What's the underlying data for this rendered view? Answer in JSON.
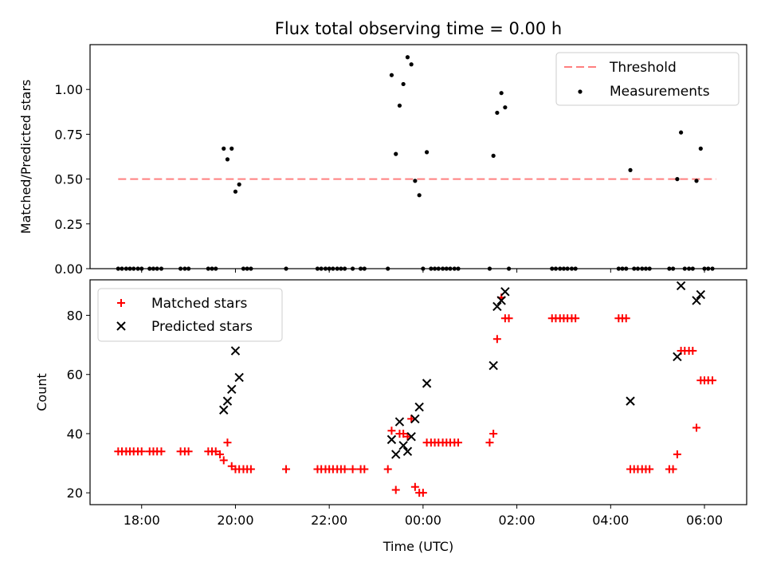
{
  "figure": {
    "title": "Flux total observing time = 0.00 h"
  },
  "colors": {
    "threshold": "#ff7f7f",
    "measurement": "#000000",
    "matched": "#ff0000",
    "predicted": "#000000"
  },
  "chart_data": [
    {
      "type": "scatter",
      "ylabel": "Matched/Predicted stars",
      "xlabel": "",
      "x_unit": "hours (UTC) from 00:00",
      "xlim": [
        -7.1,
        6.9
      ],
      "ylim": [
        0,
        1.25
      ],
      "yticks": [
        0.0,
        0.25,
        0.5,
        0.75,
        1.0
      ],
      "ytick_labels": [
        "0.00",
        "0.25",
        "0.50",
        "0.75",
        "1.00"
      ],
      "legend": {
        "position": "upper-right",
        "entries": [
          "Threshold",
          "Measurements"
        ]
      },
      "threshold": {
        "name": "Threshold",
        "y": 0.5,
        "x_range": [
          -6.5,
          6.25
        ],
        "style": "dashed"
      },
      "series": [
        {
          "name": "Measurements",
          "marker": "dot",
          "points": [
            [
              -6.5,
              0
            ],
            [
              -6.42,
              0
            ],
            [
              -6.33,
              0
            ],
            [
              -6.25,
              0
            ],
            [
              -6.17,
              0
            ],
            [
              -6.08,
              0
            ],
            [
              -6.0,
              0
            ],
            [
              -5.83,
              0
            ],
            [
              -5.75,
              0
            ],
            [
              -5.67,
              0
            ],
            [
              -5.58,
              0
            ],
            [
              -5.17,
              0
            ],
            [
              -5.08,
              0
            ],
            [
              -5.0,
              0
            ],
            [
              -4.58,
              0
            ],
            [
              -4.5,
              0
            ],
            [
              -4.42,
              0
            ],
            [
              -4.25,
              0.67
            ],
            [
              -4.17,
              0.61
            ],
            [
              -4.08,
              0.67
            ],
            [
              -4.0,
              0.43
            ],
            [
              -3.92,
              0.47
            ],
            [
              -3.83,
              0
            ],
            [
              -3.75,
              0
            ],
            [
              -3.67,
              0
            ],
            [
              -2.92,
              0
            ],
            [
              -2.25,
              0
            ],
            [
              -2.17,
              0
            ],
            [
              -2.08,
              0
            ],
            [
              -2.0,
              0
            ],
            [
              -1.92,
              0
            ],
            [
              -1.83,
              0
            ],
            [
              -1.75,
              0
            ],
            [
              -1.67,
              0
            ],
            [
              -1.5,
              0
            ],
            [
              -1.33,
              0
            ],
            [
              -1.25,
              0
            ],
            [
              -0.75,
              0
            ],
            [
              -0.67,
              1.08
            ],
            [
              -0.58,
              0.64
            ],
            [
              -0.5,
              0.91
            ],
            [
              -0.42,
              1.03
            ],
            [
              -0.33,
              1.18
            ],
            [
              -0.25,
              1.14
            ],
            [
              -0.17,
              0.49
            ],
            [
              -0.08,
              0.41
            ],
            [
              0.0,
              0
            ],
            [
              0.08,
              0.65
            ],
            [
              0.17,
              0
            ],
            [
              0.25,
              0
            ],
            [
              0.33,
              0
            ],
            [
              0.42,
              0
            ],
            [
              0.5,
              0
            ],
            [
              0.58,
              0
            ],
            [
              0.67,
              0
            ],
            [
              0.75,
              0
            ],
            [
              1.42,
              0
            ],
            [
              1.5,
              0.63
            ],
            [
              1.58,
              0.87
            ],
            [
              1.67,
              0.98
            ],
            [
              1.75,
              0.9
            ],
            [
              1.83,
              0
            ],
            [
              2.75,
              0
            ],
            [
              2.83,
              0
            ],
            [
              2.92,
              0
            ],
            [
              3.0,
              0
            ],
            [
              3.08,
              0
            ],
            [
              3.17,
              0
            ],
            [
              3.25,
              0
            ],
            [
              4.17,
              0
            ],
            [
              4.25,
              0
            ],
            [
              4.33,
              0
            ],
            [
              4.42,
              0.55
            ],
            [
              4.5,
              0
            ],
            [
              4.58,
              0
            ],
            [
              4.67,
              0
            ],
            [
              4.75,
              0
            ],
            [
              4.83,
              0
            ],
            [
              5.25,
              0
            ],
            [
              5.33,
              0
            ],
            [
              5.42,
              0.5
            ],
            [
              5.5,
              0.76
            ],
            [
              5.58,
              0
            ],
            [
              5.67,
              0
            ],
            [
              5.75,
              0
            ],
            [
              5.83,
              0.49
            ],
            [
              5.92,
              0.67
            ],
            [
              6.0,
              0
            ],
            [
              6.08,
              0
            ],
            [
              6.17,
              0
            ]
          ]
        }
      ]
    },
    {
      "type": "scatter",
      "ylabel": "Count",
      "xlabel": "Time (UTC)",
      "x_unit": "hours (UTC) from 00:00",
      "xlim": [
        -7.1,
        6.9
      ],
      "ylim": [
        16,
        92
      ],
      "xticks": [
        -6,
        -4,
        -2,
        0,
        2,
        4,
        6
      ],
      "xtick_labels": [
        "18:00",
        "20:00",
        "22:00",
        "00:00",
        "02:00",
        "04:00",
        "06:00"
      ],
      "yticks": [
        20,
        40,
        60,
        80
      ],
      "ytick_labels": [
        "20",
        "40",
        "60",
        "80"
      ],
      "legend": {
        "position": "upper-left",
        "entries": [
          "Matched stars",
          "Predicted stars"
        ]
      },
      "series": [
        {
          "name": "Matched stars",
          "marker": "plus",
          "points": [
            [
              -6.5,
              34
            ],
            [
              -6.42,
              34
            ],
            [
              -6.33,
              34
            ],
            [
              -6.25,
              34
            ],
            [
              -6.17,
              34
            ],
            [
              -6.08,
              34
            ],
            [
              -6.0,
              34
            ],
            [
              -5.83,
              34
            ],
            [
              -5.75,
              34
            ],
            [
              -5.67,
              34
            ],
            [
              -5.58,
              34
            ],
            [
              -5.17,
              34
            ],
            [
              -5.08,
              34
            ],
            [
              -5.0,
              34
            ],
            [
              -4.58,
              34
            ],
            [
              -4.5,
              34
            ],
            [
              -4.42,
              34
            ],
            [
              -4.33,
              33
            ],
            [
              -4.25,
              31
            ],
            [
              -4.17,
              37
            ],
            [
              -4.08,
              29
            ],
            [
              -4.0,
              28
            ],
            [
              -3.92,
              28
            ],
            [
              -3.83,
              28
            ],
            [
              -3.75,
              28
            ],
            [
              -3.67,
              28
            ],
            [
              -2.92,
              28
            ],
            [
              -2.25,
              28
            ],
            [
              -2.17,
              28
            ],
            [
              -2.08,
              28
            ],
            [
              -2.0,
              28
            ],
            [
              -1.92,
              28
            ],
            [
              -1.83,
              28
            ],
            [
              -1.75,
              28
            ],
            [
              -1.67,
              28
            ],
            [
              -1.5,
              28
            ],
            [
              -1.33,
              28
            ],
            [
              -1.25,
              28
            ],
            [
              -0.75,
              28
            ],
            [
              -0.67,
              41
            ],
            [
              -0.58,
              21
            ],
            [
              -0.5,
              40
            ],
            [
              -0.42,
              40
            ],
            [
              -0.33,
              39
            ],
            [
              -0.25,
              45
            ],
            [
              -0.17,
              22
            ],
            [
              -0.08,
              20
            ],
            [
              0.0,
              20
            ],
            [
              0.08,
              37
            ],
            [
              0.17,
              37
            ],
            [
              0.25,
              37
            ],
            [
              0.33,
              37
            ],
            [
              0.42,
              37
            ],
            [
              0.5,
              37
            ],
            [
              0.58,
              37
            ],
            [
              0.67,
              37
            ],
            [
              0.75,
              37
            ],
            [
              1.42,
              37
            ],
            [
              1.5,
              40
            ],
            [
              1.58,
              72
            ],
            [
              1.67,
              86
            ],
            [
              1.75,
              79
            ],
            [
              1.83,
              79
            ],
            [
              2.75,
              79
            ],
            [
              2.83,
              79
            ],
            [
              2.92,
              79
            ],
            [
              3.0,
              79
            ],
            [
              3.08,
              79
            ],
            [
              3.17,
              79
            ],
            [
              3.25,
              79
            ],
            [
              4.17,
              79
            ],
            [
              4.25,
              79
            ],
            [
              4.33,
              79
            ],
            [
              4.42,
              28
            ],
            [
              4.5,
              28
            ],
            [
              4.58,
              28
            ],
            [
              4.67,
              28
            ],
            [
              4.75,
              28
            ],
            [
              4.83,
              28
            ],
            [
              5.25,
              28
            ],
            [
              5.33,
              28
            ],
            [
              5.42,
              33
            ],
            [
              5.5,
              68
            ],
            [
              5.58,
              68
            ],
            [
              5.67,
              68
            ],
            [
              5.75,
              68
            ],
            [
              5.83,
              42
            ],
            [
              5.92,
              58
            ],
            [
              6.0,
              58
            ],
            [
              6.08,
              58
            ],
            [
              6.17,
              58
            ]
          ]
        },
        {
          "name": "Predicted stars",
          "marker": "cross",
          "points": [
            [
              -4.25,
              48
            ],
            [
              -4.17,
              51
            ],
            [
              -4.08,
              55
            ],
            [
              -4.0,
              68
            ],
            [
              -3.92,
              59
            ],
            [
              -0.67,
              38
            ],
            [
              -0.58,
              33
            ],
            [
              -0.5,
              44
            ],
            [
              -0.42,
              36
            ],
            [
              -0.33,
              34
            ],
            [
              -0.25,
              39
            ],
            [
              -0.17,
              45
            ],
            [
              -0.08,
              49
            ],
            [
              0.08,
              57
            ],
            [
              1.5,
              63
            ],
            [
              1.58,
              83
            ],
            [
              1.67,
              85
            ],
            [
              1.75,
              88
            ],
            [
              4.42,
              51
            ],
            [
              5.42,
              66
            ],
            [
              5.5,
              90
            ],
            [
              5.83,
              85
            ],
            [
              5.92,
              87
            ]
          ]
        }
      ]
    }
  ]
}
